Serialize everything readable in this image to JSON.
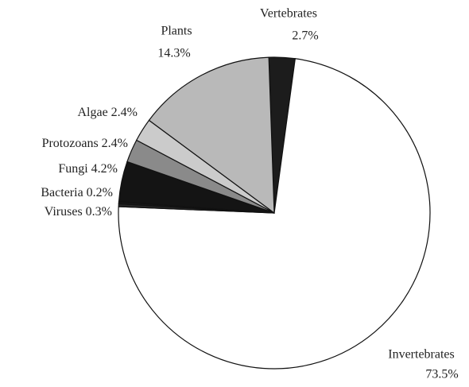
{
  "chart_data": {
    "type": "pie",
    "categories": [
      "Vertebrates",
      "Invertebrates",
      "Viruses",
      "Bacteria",
      "Fungi",
      "Protozoans",
      "Algae",
      "Plants"
    ],
    "values": [
      2.7,
      73.5,
      0.3,
      0.2,
      4.2,
      2.4,
      2.4,
      14.3
    ],
    "value_labels": [
      "2.7%",
      "73.5%",
      "0.3%",
      "0.2%",
      "4.2%",
      "2.4%",
      "2.4%",
      "14.3%"
    ],
    "colors": [
      "#1c1c1c",
      "#ffffff",
      "#262626",
      "#1a1a1a",
      "#141414",
      "#8a8a8a",
      "#cbcbcb",
      "#b9b9b9"
    ]
  }
}
